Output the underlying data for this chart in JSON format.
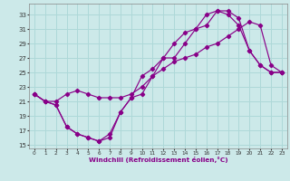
{
  "xlabel": "Windchill (Refroidissement éolien,°C)",
  "bg_color": "#cce9e9",
  "grid_color": "#aed8d8",
  "line_color": "#880088",
  "xlim": [
    -0.5,
    23.5
  ],
  "ylim": [
    14.5,
    34.5
  ],
  "yticks": [
    15,
    17,
    19,
    21,
    23,
    25,
    27,
    29,
    31,
    33
  ],
  "xticks": [
    0,
    1,
    2,
    3,
    4,
    5,
    6,
    7,
    8,
    9,
    10,
    11,
    12,
    13,
    14,
    15,
    16,
    17,
    18,
    19,
    20,
    21,
    22,
    23
  ],
  "line1_x": [
    0,
    1,
    2,
    3,
    4,
    5,
    6,
    7,
    8,
    9,
    10,
    11,
    12,
    13,
    14,
    15,
    16,
    17,
    18,
    19,
    20,
    21,
    22,
    23
  ],
  "line1_y": [
    22,
    21,
    20.5,
    17.5,
    16.5,
    16,
    15.5,
    16,
    19.5,
    21.5,
    24.5,
    25.5,
    27,
    29,
    30.5,
    31,
    31.5,
    33.5,
    33,
    31.5,
    28,
    26,
    25,
    25
  ],
  "line2_x": [
    0,
    1,
    2,
    3,
    4,
    5,
    6,
    7,
    8,
    9,
    10,
    11,
    12,
    13,
    14,
    15,
    16,
    17,
    18,
    19,
    20,
    21,
    22,
    23
  ],
  "line2_y": [
    22,
    21,
    20.5,
    17.5,
    16.5,
    16,
    15.5,
    16.5,
    19.5,
    21.5,
    22,
    24.5,
    27,
    27,
    29,
    31,
    33,
    33.5,
    33.5,
    32.5,
    28,
    26,
    25,
    25
  ],
  "line3_x": [
    0,
    1,
    2,
    3,
    4,
    5,
    6,
    7,
    8,
    9,
    10,
    11,
    12,
    13,
    14,
    15,
    16,
    17,
    18,
    19,
    20,
    21,
    22,
    23
  ],
  "line3_y": [
    22,
    21,
    21,
    22,
    22.5,
    22,
    21.5,
    21.5,
    21.5,
    22,
    23,
    24.5,
    25.5,
    26.5,
    27,
    27.5,
    28.5,
    29,
    30,
    31,
    32,
    31.5,
    26,
    25
  ]
}
